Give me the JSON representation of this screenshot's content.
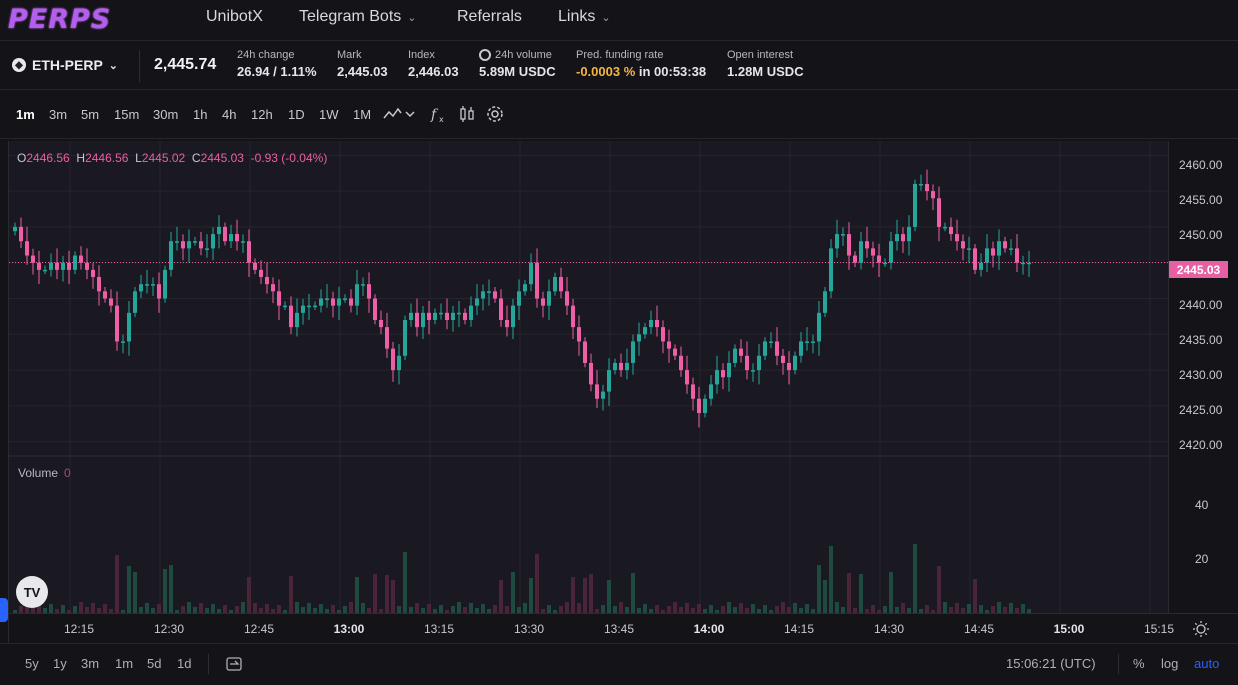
{
  "nav": {
    "logo": "PERPS",
    "items": [
      {
        "label": "UnibotX",
        "chevron": false
      },
      {
        "label": "Telegram Bots",
        "chevron": true
      },
      {
        "label": "Referrals",
        "chevron": false
      },
      {
        "label": "Links",
        "chevron": true
      }
    ]
  },
  "ticker": {
    "market": "ETH-PERP",
    "last_price": "2,445.74",
    "stats": [
      {
        "label": "24h change",
        "value": "26.94 / 1.11%",
        "color": "#2bb89b"
      },
      {
        "label": "Mark",
        "value": "2,445.03"
      },
      {
        "label": "Index",
        "value": "2,446.03"
      },
      {
        "label": "24h volume",
        "value": "5.89M USDC",
        "icon": "clock-icon"
      },
      {
        "label": "Pred. funding rate",
        "value_highlight": "-0.0003 %",
        "value_rest": " in 00:53:38"
      },
      {
        "label": "Open interest",
        "value": "1.28M USDC"
      }
    ]
  },
  "toolbar": {
    "timeframes": [
      "1m",
      "3m",
      "5m",
      "15m",
      "30m",
      "1h",
      "4h",
      "12h",
      "1D",
      "1W",
      "1M"
    ],
    "active_timeframe": "1m"
  },
  "legend": {
    "o": "2446.56",
    "h": "2446.56",
    "l": "2445.02",
    "c": "2445.03",
    "chg": "-0.93 (-0.04%)"
  },
  "volume_label": "Volume",
  "volume_value": "0",
  "price_axis": [
    "2460.00",
    "2455.00",
    "2450.00",
    "2445.00",
    "2440.00",
    "2435.00",
    "2430.00",
    "2425.00",
    "2420.00"
  ],
  "current_price": "2445.03",
  "volume_axis": [
    "40",
    "20"
  ],
  "time_axis": [
    {
      "t": "12:15",
      "bold": false
    },
    {
      "t": "12:30",
      "bold": false
    },
    {
      "t": "12:45",
      "bold": false
    },
    {
      "t": "13:00",
      "bold": true
    },
    {
      "t": "13:15",
      "bold": false
    },
    {
      "t": "13:30",
      "bold": false
    },
    {
      "t": "13:45",
      "bold": false
    },
    {
      "t": "14:00",
      "bold": true
    },
    {
      "t": "14:15",
      "bold": false
    },
    {
      "t": "14:30",
      "bold": false
    },
    {
      "t": "14:45",
      "bold": false
    },
    {
      "t": "15:00",
      "bold": true
    },
    {
      "t": "15:15",
      "bold": false
    }
  ],
  "bottom": {
    "ranges": [
      "5y",
      "1y",
      "3m",
      "1m",
      "5d",
      "1d"
    ],
    "clock": "15:06:21 (UTC)",
    "pct": "%",
    "log": "log",
    "auto": "auto"
  },
  "colors": {
    "up": "#26a69a",
    "down": "#ef5fa7",
    "accent": "#2962ff",
    "bg": "#1a1820"
  },
  "chart_data": {
    "type": "candlestick",
    "title": "",
    "xlabel": "",
    "ylabel": "",
    "ylim": [
      2420,
      2462
    ],
    "x_start": "12:05",
    "interval": "1m",
    "closes": [
      2450,
      2448,
      2446,
      2445,
      2444,
      2444,
      2445,
      2444,
      2445,
      2444,
      2446,
      2445,
      2444,
      2443,
      2441,
      2440,
      2439,
      2434,
      2434,
      2438,
      2441,
      2442,
      2442,
      2442,
      2440,
      2444,
      2448,
      2448,
      2447,
      2448,
      2448,
      2447,
      2447,
      2449,
      2450,
      2448,
      2449,
      2448,
      2448,
      2445,
      2444,
      2443,
      2442,
      2441,
      2439,
      2439,
      2436,
      2438,
      2439,
      2439,
      2439,
      2440,
      2440,
      2439,
      2440,
      2440,
      2439,
      2442,
      2442,
      2440,
      2437,
      2436,
      2433,
      2430,
      2432,
      2437,
      2438,
      2436,
      2438,
      2437,
      2438,
      2438,
      2437,
      2438,
      2438,
      2437,
      2439,
      2440,
      2441,
      2441,
      2440,
      2437,
      2436,
      2439,
      2441,
      2442,
      2445,
      2440,
      2439,
      2441,
      2443,
      2441,
      2439,
      2436,
      2434,
      2431,
      2428,
      2426,
      2427,
      2430,
      2431,
      2430,
      2431,
      2434,
      2435,
      2436,
      2437,
      2436,
      2434,
      2433,
      2432,
      2430,
      2428,
      2426,
      2424,
      2426,
      2428,
      2430,
      2429,
      2431,
      2433,
      2432,
      2430,
      2430,
      2432,
      2434,
      2434,
      2432,
      2431,
      2430,
      2432,
      2434,
      2434,
      2434,
      2438,
      2441,
      2447,
      2449,
      2449,
      2446,
      2445,
      2448,
      2447,
      2446,
      2445,
      2445,
      2448,
      2449,
      2448,
      2450,
      2456,
      2456,
      2455,
      2454,
      2450,
      2450,
      2449,
      2448,
      2447,
      2447,
      2444,
      2445,
      2447,
      2446,
      2448,
      2447,
      2447,
      2445,
      2445,
      2445
    ]
  }
}
